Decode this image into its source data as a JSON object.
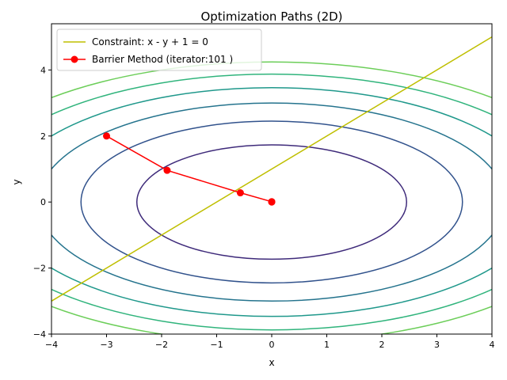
{
  "chart_data": {
    "type": "line",
    "title": "Optimization Paths (2D)",
    "xlabel": "x",
    "ylabel": "y",
    "xlim": [
      -4,
      4
    ],
    "ylim": [
      -4,
      5.4
    ],
    "xticks": [
      -4,
      -3,
      -2,
      -1,
      0,
      1,
      2,
      3,
      4
    ],
    "yticks": [
      -4,
      -2,
      0,
      2,
      4
    ],
    "xtick_labels": [
      "−4",
      "−3",
      "−2",
      "−1",
      "0",
      "1",
      "2",
      "3",
      "4"
    ],
    "ytick_labels": [
      "−4",
      "−2",
      "0",
      "2",
      "4"
    ],
    "grid": false,
    "legend_position": "top-left",
    "contours": {
      "function": "x^2 + 2*y^2",
      "levels": [
        6,
        12,
        18,
        24,
        30,
        36
      ],
      "colors": [
        "#3e2a7a",
        "#31528c",
        "#24738d",
        "#1f988b",
        "#30b47c",
        "#6cce59",
        "#b4dd2b"
      ]
    },
    "series": [
      {
        "name": "Constraint: x - y + 1 = 0",
        "color": "#bfbf00",
        "x": [
          -4,
          4
        ],
        "y": [
          -3,
          5
        ]
      },
      {
        "name": "Barrier Method (iterator:101 )",
        "color": "#ff0000",
        "marker": "o",
        "x": [
          -3,
          -1.9,
          -0.57,
          0,
          0,
          0
        ],
        "y": [
          2,
          0.96,
          0.28,
          0.01,
          0.005,
          0
        ]
      }
    ]
  }
}
